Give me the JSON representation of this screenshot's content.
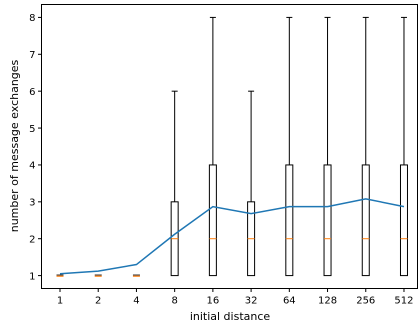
{
  "chart_data": {
    "type": "box",
    "xlabel": "initial distance",
    "ylabel": "number of message exchanges",
    "categories": [
      "1",
      "2",
      "4",
      "8",
      "16",
      "32",
      "64",
      "128",
      "256",
      "512"
    ],
    "ylim": [
      0.65,
      8.35
    ],
    "yticks": [
      1,
      2,
      3,
      4,
      5,
      6,
      7,
      8
    ],
    "grid": false,
    "boxes": [
      {
        "min": 1,
        "q1": 1,
        "median": 1,
        "q3": 1,
        "max": 1
      },
      {
        "min": 1,
        "q1": 1,
        "median": 1,
        "q3": 1,
        "max": 1
      },
      {
        "min": 1,
        "q1": 1,
        "median": 1,
        "q3": 1,
        "max": 1
      },
      {
        "min": 1,
        "q1": 1,
        "median": 2,
        "q3": 3,
        "max": 6
      },
      {
        "min": 1,
        "q1": 1,
        "median": 2,
        "q3": 4,
        "max": 8
      },
      {
        "min": 1,
        "q1": 1,
        "median": 2,
        "q3": 3,
        "max": 6
      },
      {
        "min": 1,
        "q1": 1,
        "median": 2,
        "q3": 4,
        "max": 8
      },
      {
        "min": 1,
        "q1": 1,
        "median": 2,
        "q3": 4,
        "max": 8
      },
      {
        "min": 1,
        "q1": 1,
        "median": 2,
        "q3": 4,
        "max": 8
      },
      {
        "min": 1,
        "q1": 1,
        "median": 2,
        "q3": 4,
        "max": 8
      }
    ],
    "series": [
      {
        "type": "line",
        "values": [
          1.05,
          1.12,
          1.3,
          2.12,
          2.87,
          2.68,
          2.87,
          2.87,
          3.08,
          2.87
        ]
      }
    ],
    "colors": {
      "line": "#1f77b4",
      "median": "#ff7f0e",
      "box": "#000000",
      "axes": "#000000"
    }
  }
}
